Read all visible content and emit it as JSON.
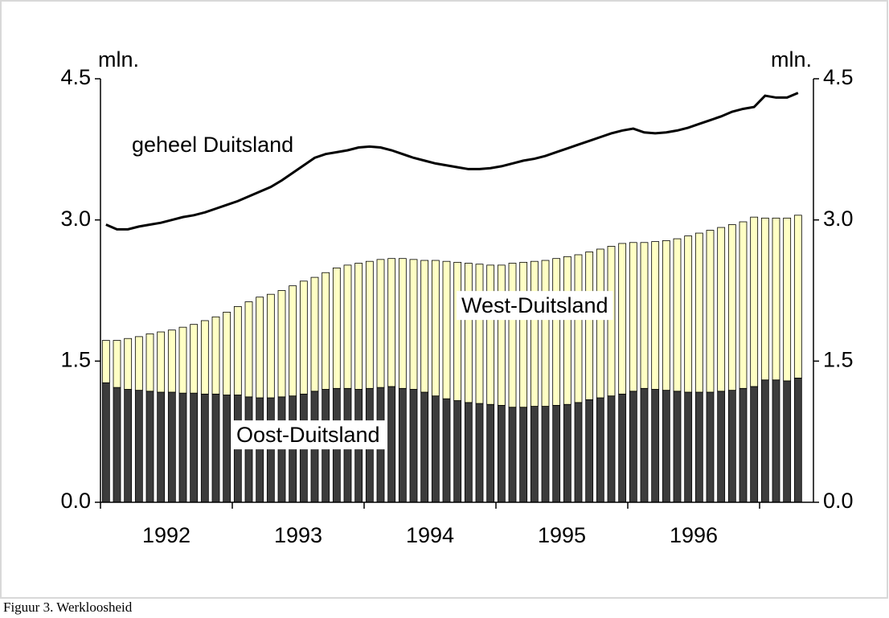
{
  "chart_data": {
    "type": "bar",
    "stacked": true,
    "categories": [
      null,
      null,
      null,
      null,
      null,
      "1992",
      null,
      null,
      null,
      null,
      null,
      null,
      null,
      null,
      null,
      null,
      null,
      "1993",
      null,
      null,
      null,
      null,
      null,
      null,
      null,
      null,
      null,
      null,
      null,
      "1994",
      null,
      null,
      null,
      null,
      null,
      null,
      null,
      null,
      null,
      null,
      null,
      "1995",
      null,
      null,
      null,
      null,
      null,
      null,
      null,
      null,
      null,
      null,
      null,
      "1996",
      null,
      null,
      null,
      null,
      null,
      null,
      null,
      null,
      null,
      null
    ],
    "series": [
      {
        "name": "Oost-Duitsland",
        "color": "#3c3c3c",
        "values": [
          1.27,
          1.22,
          1.2,
          1.19,
          1.18,
          1.17,
          1.17,
          1.16,
          1.16,
          1.15,
          1.15,
          1.14,
          1.14,
          1.12,
          1.11,
          1.11,
          1.12,
          1.13,
          1.15,
          1.18,
          1.2,
          1.21,
          1.21,
          1.2,
          1.21,
          1.22,
          1.23,
          1.21,
          1.2,
          1.17,
          1.13,
          1.1,
          1.08,
          1.06,
          1.05,
          1.04,
          1.03,
          1.01,
          1.01,
          1.02,
          1.02,
          1.03,
          1.04,
          1.06,
          1.09,
          1.11,
          1.13,
          1.15,
          1.18,
          1.21,
          1.2,
          1.19,
          1.18,
          1.17,
          1.17,
          1.17,
          1.18,
          1.19,
          1.21,
          1.23,
          1.3,
          1.3,
          1.29,
          1.32
        ]
      },
      {
        "name": "West-Duitsland",
        "color": "#ffffc4",
        "values": [
          0.45,
          0.5,
          0.54,
          0.57,
          0.61,
          0.64,
          0.66,
          0.7,
          0.73,
          0.78,
          0.82,
          0.88,
          0.94,
          1.01,
          1.07,
          1.1,
          1.13,
          1.17,
          1.2,
          1.21,
          1.24,
          1.28,
          1.31,
          1.34,
          1.35,
          1.36,
          1.36,
          1.38,
          1.38,
          1.4,
          1.44,
          1.46,
          1.47,
          1.48,
          1.48,
          1.48,
          1.49,
          1.53,
          1.54,
          1.54,
          1.55,
          1.56,
          1.57,
          1.57,
          1.57,
          1.58,
          1.59,
          1.6,
          1.58,
          1.55,
          1.57,
          1.59,
          1.62,
          1.66,
          1.69,
          1.72,
          1.74,
          1.76,
          1.77,
          1.8,
          1.72,
          1.72,
          1.73,
          1.73
        ]
      },
      {
        "name": "geheel Duitsland",
        "type": "line",
        "color": "#000000",
        "values": [
          2.95,
          2.9,
          2.9,
          2.93,
          2.95,
          2.97,
          3.0,
          3.03,
          3.05,
          3.08,
          3.12,
          3.16,
          3.2,
          3.25,
          3.3,
          3.35,
          3.42,
          3.5,
          3.58,
          3.66,
          3.7,
          3.72,
          3.74,
          3.77,
          3.78,
          3.77,
          3.74,
          3.7,
          3.66,
          3.63,
          3.6,
          3.58,
          3.56,
          3.54,
          3.54,
          3.55,
          3.57,
          3.6,
          3.63,
          3.65,
          3.68,
          3.72,
          3.76,
          3.8,
          3.84,
          3.88,
          3.92,
          3.95,
          3.97,
          3.93,
          3.92,
          3.93,
          3.95,
          3.98,
          4.02,
          4.06,
          4.1,
          4.15,
          4.18,
          4.2,
          4.32,
          4.3,
          4.3,
          4.35
        ]
      }
    ],
    "ylabel": "mln.",
    "y2label": "mln.",
    "ylim": [
      0,
      4.5
    ],
    "yticks": [
      {
        "value": 0,
        "label": "0.0"
      },
      {
        "value": 1.5,
        "label": "1.5"
      },
      {
        "value": 3,
        "label": "3.0"
      },
      {
        "value": 4.5,
        "label": "4.5"
      }
    ],
    "y2lim": [
      0,
      4.5
    ],
    "y2ticks": [
      {
        "value": 0,
        "label": "0.0"
      },
      {
        "value": 1.5,
        "label": "1.5"
      },
      {
        "value": 3,
        "label": "3.0"
      },
      {
        "value": 4.5,
        "label": "4.5"
      }
    ],
    "caption": "Figuur 3. Werkloosheid"
  }
}
